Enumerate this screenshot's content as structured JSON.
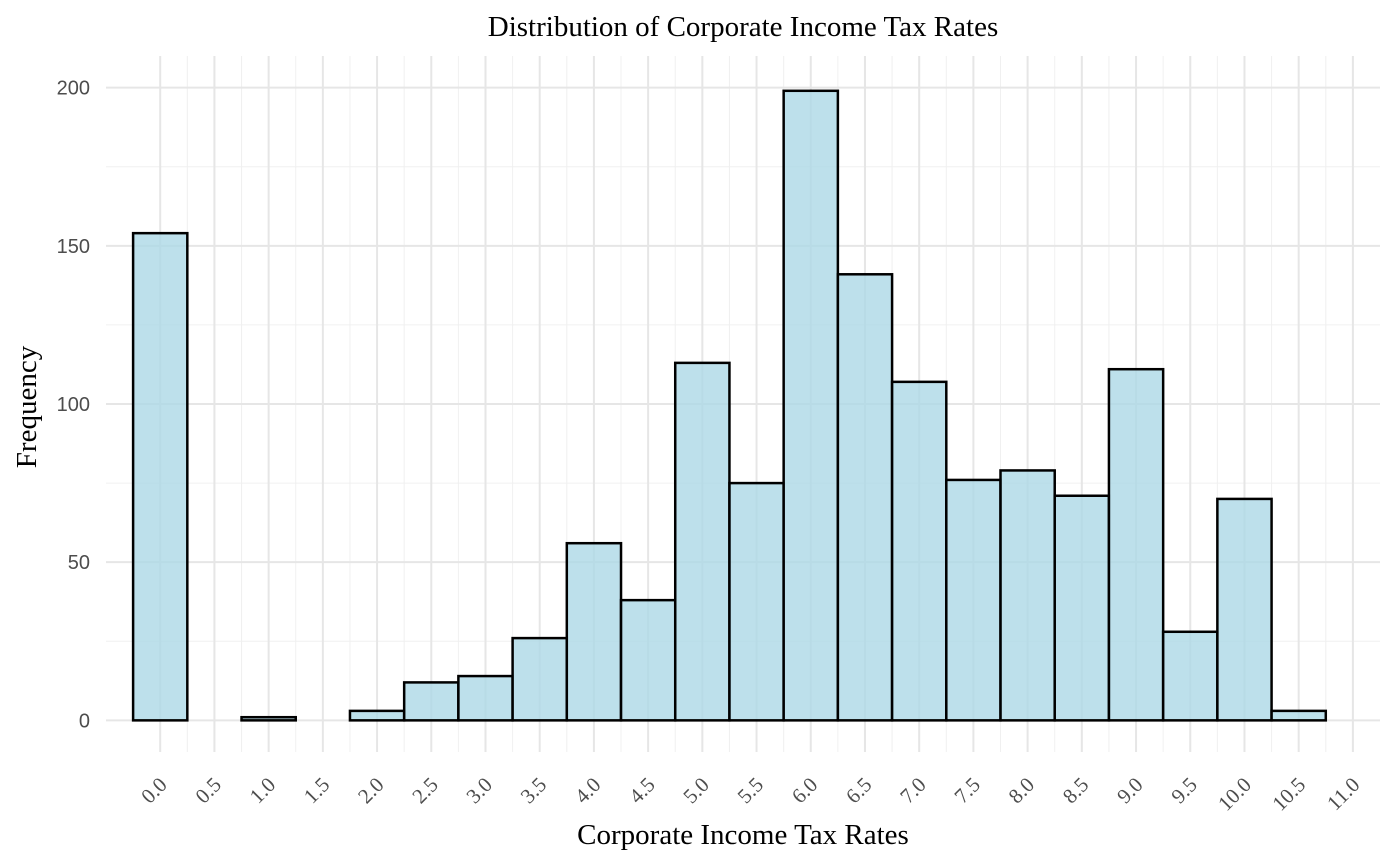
{
  "chart_data": {
    "type": "bar",
    "subtype": "histogram",
    "title": "Distribution of Corporate Income Tax Rates",
    "xlabel": "Corporate Income Tax Rates",
    "ylabel": "Frequency",
    "bin_width": 0.5,
    "bins": [
      {
        "start": -0.25,
        "end": 0.25,
        "count": 154
      },
      {
        "start": 0.25,
        "end": 0.75,
        "count": 0
      },
      {
        "start": 0.75,
        "end": 1.25,
        "count": 1
      },
      {
        "start": 1.25,
        "end": 1.75,
        "count": 0
      },
      {
        "start": 1.75,
        "end": 2.25,
        "count": 3
      },
      {
        "start": 2.25,
        "end": 2.75,
        "count": 12
      },
      {
        "start": 2.75,
        "end": 3.25,
        "count": 14
      },
      {
        "start": 3.25,
        "end": 3.75,
        "count": 26
      },
      {
        "start": 3.75,
        "end": 4.25,
        "count": 56
      },
      {
        "start": 4.25,
        "end": 4.75,
        "count": 38
      },
      {
        "start": 4.75,
        "end": 5.25,
        "count": 113
      },
      {
        "start": 5.25,
        "end": 5.75,
        "count": 75
      },
      {
        "start": 5.75,
        "end": 6.25,
        "count": 199
      },
      {
        "start": 6.25,
        "end": 6.75,
        "count": 141
      },
      {
        "start": 6.75,
        "end": 7.25,
        "count": 107
      },
      {
        "start": 7.25,
        "end": 7.75,
        "count": 76
      },
      {
        "start": 7.75,
        "end": 8.25,
        "count": 79
      },
      {
        "start": 8.25,
        "end": 8.75,
        "count": 71
      },
      {
        "start": 8.75,
        "end": 9.25,
        "count": 111
      },
      {
        "start": 9.25,
        "end": 9.75,
        "count": 28
      },
      {
        "start": 9.75,
        "end": 10.25,
        "count": 70
      },
      {
        "start": 10.25,
        "end": 10.75,
        "count": 3
      }
    ],
    "x_ticks": [
      0.0,
      0.5,
      1.0,
      1.5,
      2.0,
      2.5,
      3.0,
      3.5,
      4.0,
      4.5,
      5.0,
      5.5,
      6.0,
      6.5,
      7.0,
      7.5,
      8.0,
      8.5,
      9.0,
      9.5,
      10.0,
      10.5,
      11.0
    ],
    "x_tick_labels": [
      "0.0",
      "0.5",
      "1.0",
      "1.5",
      "2.0",
      "2.5",
      "3.0",
      "3.5",
      "4.0",
      "4.5",
      "5.0",
      "5.5",
      "6.0",
      "6.5",
      "7.0",
      "7.5",
      "8.0",
      "8.5",
      "9.0",
      "9.5",
      "10.0",
      "10.5",
      "11.0"
    ],
    "y_ticks": [
      0,
      50,
      100,
      150,
      200
    ],
    "y_tick_labels": [
      "0",
      "50",
      "100",
      "150",
      "200"
    ],
    "xlim": [
      -0.5,
      11.25
    ],
    "ylim": [
      -10,
      210
    ],
    "grid": true,
    "legend": "none",
    "colors": {
      "bar_fill": "#add8e6",
      "bar_outline": "#000000",
      "grid": "#e6e6e6"
    }
  }
}
